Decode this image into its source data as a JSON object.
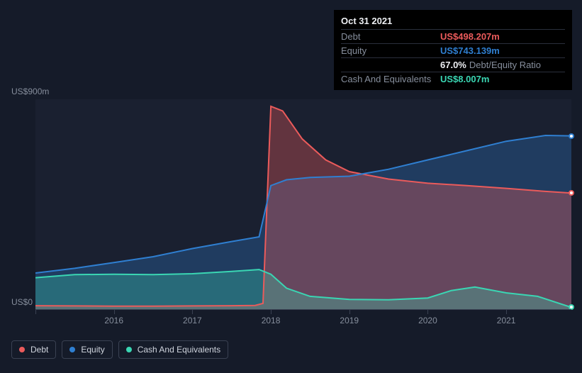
{
  "chart": {
    "type": "area",
    "background_color": "#151b29",
    "plot_background_color": "#1a2030",
    "grid_color": "#3a4152",
    "axis_text_color": "#868e9c",
    "ylim": [
      0,
      900
    ],
    "y_max_label": "US$900m",
    "y_zero_label": "US$0",
    "x_start_year": 2015.0,
    "x_end_year": 2021.83,
    "x_ticks": [
      2016,
      2017,
      2018,
      2019,
      2020,
      2021
    ],
    "x_tick_labels": [
      "2016",
      "2017",
      "2018",
      "2019",
      "2020",
      "2021"
    ],
    "label_fontsize": 12,
    "series": {
      "debt": {
        "label": "Debt",
        "stroke": "#eb5b5b",
        "fill": "#eb5b5b",
        "fill_opacity": 0.35,
        "line_width": 2,
        "x": [
          2015.0,
          2015.5,
          2016.0,
          2016.5,
          2017.0,
          2017.5,
          2017.8,
          2017.9,
          2018.0,
          2018.15,
          2018.4,
          2018.7,
          2019.0,
          2019.5,
          2020.0,
          2020.5,
          2021.0,
          2021.5,
          2021.83
        ],
        "y": [
          15,
          14,
          13,
          13,
          14,
          15,
          16,
          25,
          870,
          850,
          730,
          640,
          590,
          558,
          540,
          530,
          518,
          505,
          498
        ]
      },
      "equity": {
        "label": "Equity",
        "stroke": "#2f7fd1",
        "fill": "#2f7fd1",
        "fill_opacity": 0.3,
        "line_width": 2,
        "x": [
          2015.0,
          2015.5,
          2016.0,
          2016.5,
          2017.0,
          2017.5,
          2017.85,
          2018.0,
          2018.2,
          2018.5,
          2019.0,
          2019.5,
          2020.0,
          2020.5,
          2021.0,
          2021.5,
          2021.83
        ],
        "y": [
          155,
          175,
          200,
          225,
          260,
          290,
          310,
          530,
          555,
          565,
          570,
          600,
          640,
          680,
          720,
          745,
          743
        ]
      },
      "cash": {
        "label": "Cash And Equivalents",
        "stroke": "#3ad6b3",
        "fill": "#3ad6b3",
        "fill_opacity": 0.3,
        "line_width": 2,
        "x": [
          2015.0,
          2015.5,
          2016.0,
          2016.5,
          2017.0,
          2017.5,
          2017.85,
          2018.0,
          2018.2,
          2018.5,
          2019.0,
          2019.5,
          2020.0,
          2020.3,
          2020.6,
          2021.0,
          2021.4,
          2021.83
        ],
        "y": [
          135,
          148,
          150,
          148,
          152,
          162,
          170,
          150,
          90,
          55,
          42,
          40,
          48,
          80,
          95,
          70,
          55,
          8
        ]
      }
    },
    "end_markers": {
      "debt": {
        "border": "#eb5b5b"
      },
      "equity": {
        "border": "#2f7fd1"
      },
      "cash": {
        "border": "#3ad6b3"
      }
    }
  },
  "tooltip": {
    "date": "Oct 31 2021",
    "rows": [
      {
        "label": "Debt",
        "value": "US$498.207m",
        "color": "#eb5b5b"
      },
      {
        "label": "Equity",
        "value": "US$743.139m",
        "color": "#2f7fd1"
      },
      {
        "label": "",
        "value": "67.0%",
        "suffix": "Debt/Equity Ratio",
        "color": "#eef0f4"
      },
      {
        "label": "Cash And Equivalents",
        "value": "US$8.007m",
        "color": "#3ad6b3"
      }
    ]
  },
  "legend": {
    "items": [
      {
        "label": "Debt",
        "color": "#eb5b5b"
      },
      {
        "label": "Equity",
        "color": "#2f7fd1"
      },
      {
        "label": "Cash And Equivalents",
        "color": "#3ad6b3"
      }
    ]
  }
}
